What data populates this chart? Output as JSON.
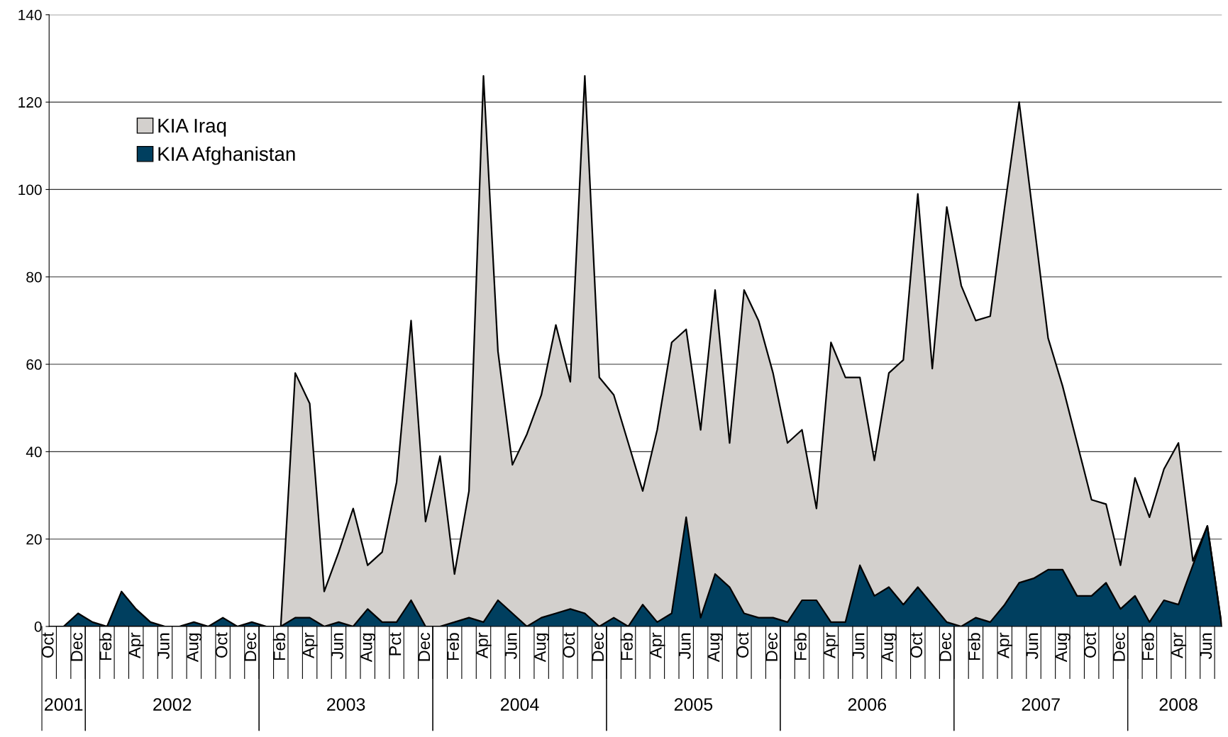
{
  "chart_data": {
    "type": "area",
    "x": [
      "2001-10",
      "2001-11",
      "2001-12",
      "2002-01",
      "2002-02",
      "2002-03",
      "2002-04",
      "2002-05",
      "2002-06",
      "2002-07",
      "2002-08",
      "2002-09",
      "2002-10",
      "2002-11",
      "2002-12",
      "2003-01",
      "2003-02",
      "2003-03",
      "2003-04",
      "2003-05",
      "2003-06",
      "2003-07",
      "2003-08",
      "2003-09",
      "2003-10",
      "2003-11",
      "2003-12",
      "2004-01",
      "2004-02",
      "2004-03",
      "2004-04",
      "2004-05",
      "2004-06",
      "2004-07",
      "2004-08",
      "2004-09",
      "2004-10",
      "2004-11",
      "2004-12",
      "2005-01",
      "2005-02",
      "2005-03",
      "2005-04",
      "2005-05",
      "2005-06",
      "2005-07",
      "2005-08",
      "2005-09",
      "2005-10",
      "2005-11",
      "2005-12",
      "2006-01",
      "2006-02",
      "2006-03",
      "2006-04",
      "2006-05",
      "2006-06",
      "2006-07",
      "2006-08",
      "2006-09",
      "2006-10",
      "2006-11",
      "2006-12",
      "2007-01",
      "2007-02",
      "2007-03",
      "2007-04",
      "2007-05",
      "2007-06",
      "2007-07",
      "2007-08",
      "2007-09",
      "2007-10",
      "2007-11",
      "2007-12",
      "2008-01",
      "2008-02",
      "2008-03",
      "2008-04",
      "2008-05",
      "2008-06",
      "2008-07"
    ],
    "series": [
      {
        "name": "KIA Iraq",
        "color": "#d3d0cd",
        "values": [
          0,
          0,
          0,
          0,
          0,
          0,
          0,
          0,
          0,
          0,
          0,
          0,
          0,
          0,
          0,
          0,
          0,
          58,
          51,
          8,
          17,
          27,
          14,
          17,
          33,
          70,
          24,
          39,
          12,
          31,
          126,
          63,
          37,
          44,
          53,
          69,
          56,
          126,
          57,
          53,
          42,
          31,
          45,
          65,
          68,
          45,
          77,
          42,
          77,
          70,
          58,
          42,
          45,
          27,
          65,
          57,
          57,
          38,
          58,
          61,
          99,
          59,
          96,
          78,
          70,
          71,
          96,
          120,
          93,
          66,
          55,
          42,
          29,
          28,
          14,
          34,
          25,
          36,
          42,
          15,
          23,
          0
        ]
      },
      {
        "name": "KIA Afghanistan",
        "color": "#003f5f",
        "values": [
          0,
          0,
          3,
          1,
          0,
          8,
          4,
          1,
          0,
          0,
          1,
          0,
          2,
          0,
          1,
          0,
          0,
          2,
          2,
          0,
          1,
          0,
          4,
          1,
          1,
          6,
          0,
          0,
          1,
          2,
          1,
          6,
          3,
          0,
          2,
          3,
          4,
          3,
          0,
          2,
          0,
          5,
          1,
          3,
          25,
          2,
          12,
          9,
          3,
          2,
          2,
          1,
          6,
          6,
          1,
          1,
          14,
          7,
          9,
          5,
          9,
          5,
          1,
          0,
          2,
          1,
          5,
          10,
          11,
          13,
          13,
          7,
          7,
          10,
          4,
          7,
          1,
          6,
          5,
          14,
          23,
          0
        ]
      }
    ],
    "xlim": [
      "2001-10",
      "2008-07"
    ],
    "xticks": [
      {
        "value": "2001-10",
        "label": "Oct"
      },
      {
        "value": "2001-12",
        "label": "Dec"
      },
      {
        "value": "2002-02",
        "label": "Feb"
      },
      {
        "value": "2002-04",
        "label": "Apr"
      },
      {
        "value": "2002-06",
        "label": "Jun"
      },
      {
        "value": "2002-08",
        "label": "Aug"
      },
      {
        "value": "2002-10",
        "label": "Oct"
      },
      {
        "value": "2002-12",
        "label": "Dec"
      },
      {
        "value": "2003-02",
        "label": "Feb"
      },
      {
        "value": "2003-04",
        "label": "Apr"
      },
      {
        "value": "2003-06",
        "label": "Jun"
      },
      {
        "value": "2003-08",
        "label": "Aug"
      },
      {
        "value": "2003-10",
        "label": "Pct"
      },
      {
        "value": "2003-12",
        "label": "Dec"
      },
      {
        "value": "2004-02",
        "label": "Feb"
      },
      {
        "value": "2004-04",
        "label": "Apr"
      },
      {
        "value": "2004-06",
        "label": "Jun"
      },
      {
        "value": "2004-08",
        "label": "Aug"
      },
      {
        "value": "2004-10",
        "label": "Oct"
      },
      {
        "value": "2004-12",
        "label": "Dec"
      },
      {
        "value": "2005-02",
        "label": "Feb"
      },
      {
        "value": "2005-04",
        "label": "Apr"
      },
      {
        "value": "2005-06",
        "label": "Jun"
      },
      {
        "value": "2005-08",
        "label": "Aug"
      },
      {
        "value": "2005-10",
        "label": "Oct"
      },
      {
        "value": "2005-12",
        "label": "Dec"
      },
      {
        "value": "2006-02",
        "label": "Feb"
      },
      {
        "value": "2006-04",
        "label": "Apr"
      },
      {
        "value": "2006-06",
        "label": "Jun"
      },
      {
        "value": "2006-08",
        "label": "Aug"
      },
      {
        "value": "2006-10",
        "label": "Oct"
      },
      {
        "value": "2006-12",
        "label": "Dec"
      },
      {
        "value": "2007-02",
        "label": "Feb"
      },
      {
        "value": "2007-04",
        "label": "Apr"
      },
      {
        "value": "2007-06",
        "label": "Jun"
      },
      {
        "value": "2007-08",
        "label": "Aug"
      },
      {
        "value": "2007-10",
        "label": "Oct"
      },
      {
        "value": "2007-12",
        "label": "Dec"
      },
      {
        "value": "2008-02",
        "label": "Feb"
      },
      {
        "value": "2008-04",
        "label": "Apr"
      },
      {
        "value": "2008-06",
        "label": "Jun"
      }
    ],
    "ylim": [
      0,
      140
    ],
    "yticks": [
      0,
      20,
      40,
      60,
      80,
      100,
      120,
      140
    ],
    "grid": "y",
    "legend": "top left",
    "annotations": [
      "2001",
      "2002",
      "2003",
      "2004",
      "2005",
      "2006",
      "2007",
      "2008"
    ]
  }
}
